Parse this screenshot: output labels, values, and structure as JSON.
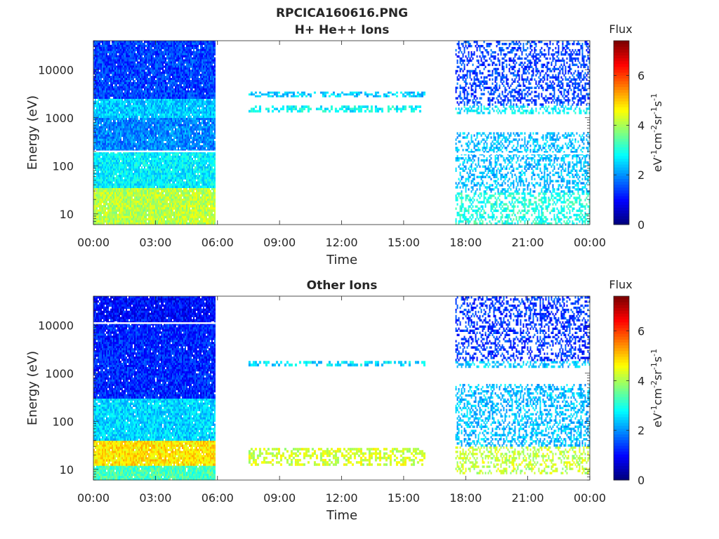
{
  "figure": {
    "title": "RPCICA160616.PNG"
  },
  "chart_data": [
    {
      "type": "heatmap",
      "title": "H+ He++ Ions",
      "xlabel": "Time",
      "ylabel": "Energy (eV)",
      "x_ticks": [
        "00:00",
        "03:00",
        "06:00",
        "09:00",
        "12:00",
        "15:00",
        "18:00",
        "21:00",
        "00:00"
      ],
      "x_range_hours": [
        0,
        24
      ],
      "y_scale": "log",
      "y_ticks": [
        "10",
        "100",
        "1000",
        "10000"
      ],
      "y_range_eV": [
        6,
        40000
      ],
      "colorbar": {
        "title": "Flux",
        "label": "eV-1cm-2sr-1s-1",
        "ticks": [
          "0",
          "2",
          "4",
          "6"
        ],
        "range": [
          0,
          7.4
        ],
        "colormap": "jet"
      },
      "segments": [
        {
          "start_h": 0.0,
          "end_h": 5.9,
          "coverage": "dense",
          "bands": [
            {
              "emin_eV": 6,
              "emax_eV": 35,
              "flux": 4.1
            },
            {
              "emin_eV": 35,
              "emax_eV": 200,
              "flux": 2.7
            },
            {
              "emin_eV": 200,
              "emax_eV": 1000,
              "flux": 1.9
            },
            {
              "emin_eV": 1000,
              "emax_eV": 2500,
              "flux": 2.4
            },
            {
              "emin_eV": 2500,
              "emax_eV": 40000,
              "flux": 1.4
            }
          ],
          "gap_line_eV": 200
        },
        {
          "start_h": 7.5,
          "end_h": 16.0,
          "coverage": "sparse",
          "bands": [
            {
              "emin_eV": 1300,
              "emax_eV": 1800,
              "flux": 2.8
            },
            {
              "emin_eV": 2700,
              "emax_eV": 3500,
              "flux": 2.4
            }
          ]
        },
        {
          "start_h": 17.5,
          "end_h": 24.0,
          "coverage": "speckled",
          "bands": [
            {
              "emin_eV": 6,
              "emax_eV": 28,
              "flux": 3.0
            },
            {
              "emin_eV": 28,
              "emax_eV": 500,
              "flux": 2.3
            },
            {
              "emin_eV": 1200,
              "emax_eV": 1800,
              "flux": 2.7
            },
            {
              "emin_eV": 1800,
              "emax_eV": 40000,
              "flux": 1.4
            }
          ],
          "gap_line_eV": 180
        }
      ]
    },
    {
      "type": "heatmap",
      "title": "Other Ions",
      "xlabel": "Time",
      "ylabel": "Energy (eV)",
      "x_ticks": [
        "00:00",
        "03:00",
        "06:00",
        "09:00",
        "12:00",
        "15:00",
        "18:00",
        "21:00",
        "00:00"
      ],
      "x_range_hours": [
        0,
        24
      ],
      "y_scale": "log",
      "y_ticks": [
        "10",
        "100",
        "1000",
        "10000"
      ],
      "y_range_eV": [
        6,
        40000
      ],
      "colorbar": {
        "title": "Flux",
        "label": "eV-1cm-2sr-1s-1",
        "ticks": [
          "0",
          "2",
          "4",
          "6"
        ],
        "range": [
          0,
          7.4
        ],
        "colormap": "jet"
      },
      "segments": [
        {
          "start_h": 0.0,
          "end_h": 5.9,
          "coverage": "dense",
          "bands": [
            {
              "emin_eV": 6,
              "emax_eV": 12,
              "flux": 3.3
            },
            {
              "emin_eV": 12,
              "emax_eV": 40,
              "flux": 4.8
            },
            {
              "emin_eV": 40,
              "emax_eV": 300,
              "flux": 2.5
            },
            {
              "emin_eV": 300,
              "emax_eV": 11000,
              "flux": 1.2
            },
            {
              "emin_eV": 11000,
              "emax_eV": 40000,
              "flux": 1.0
            }
          ],
          "gap_line_eV": 11000
        },
        {
          "start_h": 7.5,
          "end_h": 16.0,
          "coverage": "sparse",
          "bands": [
            {
              "emin_eV": 12,
              "emax_eV": 28,
              "flux": 4.3
            },
            {
              "emin_eV": 1400,
              "emax_eV": 1800,
              "flux": 2.6
            }
          ]
        },
        {
          "start_h": 17.5,
          "end_h": 24.0,
          "coverage": "speckled",
          "bands": [
            {
              "emin_eV": 8,
              "emax_eV": 30,
              "flux": 4.2
            },
            {
              "emin_eV": 30,
              "emax_eV": 600,
              "flux": 2.3
            },
            {
              "emin_eV": 1300,
              "emax_eV": 1800,
              "flux": 2.4
            },
            {
              "emin_eV": 1800,
              "emax_eV": 40000,
              "flux": 1.3
            }
          ]
        }
      ]
    }
  ]
}
